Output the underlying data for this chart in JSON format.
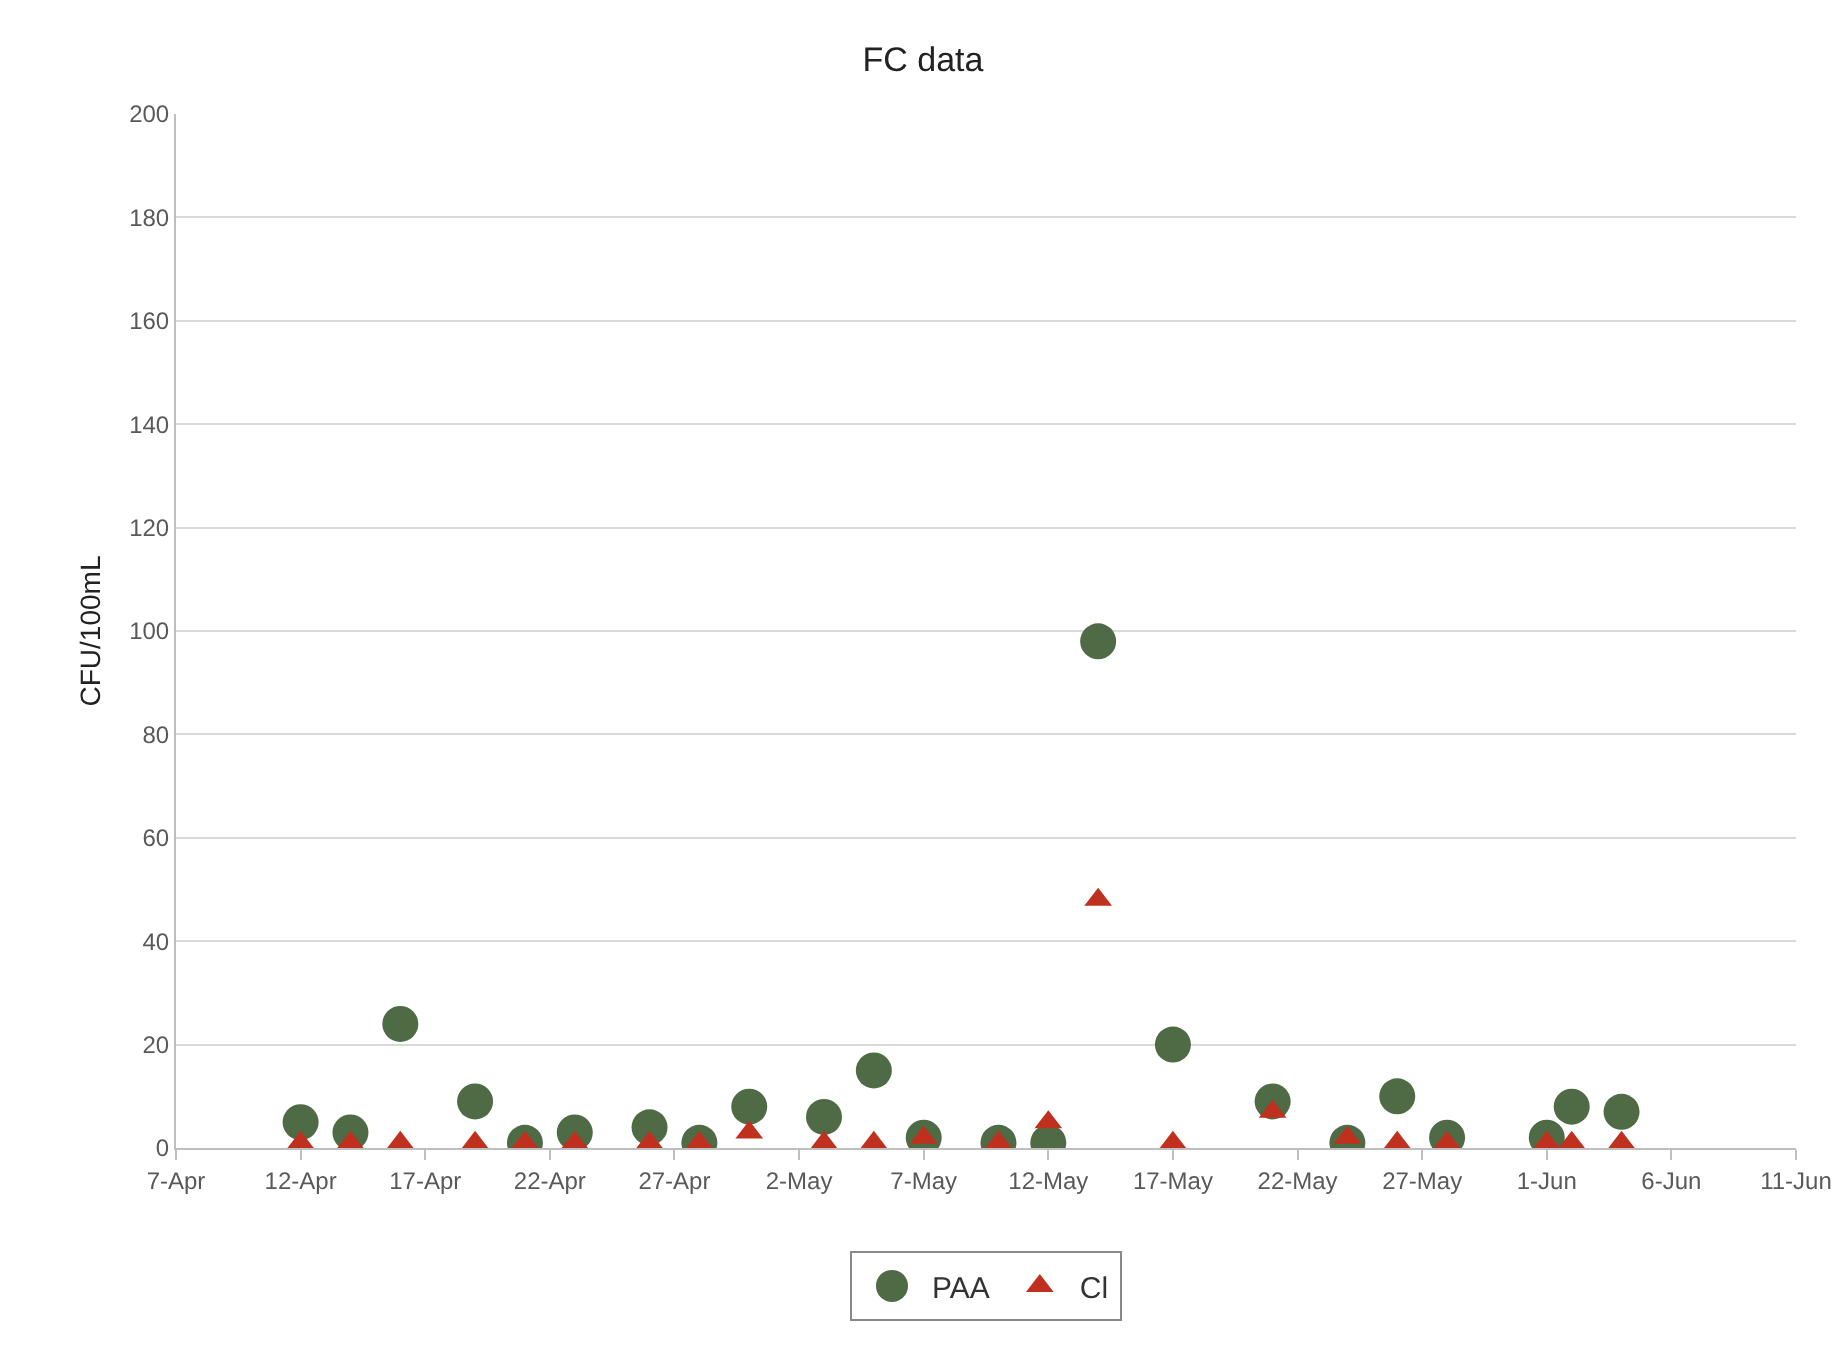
{
  "chart_data": {
    "type": "scatter",
    "title": "FC data",
    "ylabel": "CFU/100mL",
    "x": [
      "--04-12",
      "--04-14",
      "--04-16",
      "--04-19",
      "--04-21",
      "--04-23",
      "--04-26",
      "--04-28",
      "--04-30",
      "--05-03",
      "--05-05",
      "--05-07",
      "--05-10",
      "--05-12",
      "--05-14",
      "--05-17",
      "--05-21",
      "--05-24",
      "--05-26",
      "--05-28",
      "--06-01",
      "--06-02",
      "--06-04"
    ],
    "series": [
      {
        "name": "PAA",
        "color": "#4e6b45",
        "marker": "circle",
        "values": [
          5,
          3,
          24,
          9,
          1,
          3,
          4,
          1,
          8,
          6,
          15,
          2,
          1,
          1,
          98,
          20,
          9,
          1,
          10,
          2,
          2,
          8,
          7
        ]
      },
      {
        "name": "Cl",
        "color": "#c0301f",
        "marker": "triangle",
        "values": [
          1,
          1,
          1,
          1,
          1,
          1,
          1,
          1,
          3,
          1,
          1,
          2,
          1,
          5,
          48,
          1,
          7,
          2,
          1,
          1,
          1,
          1,
          1
        ]
      }
    ],
    "xlim": [
      "--04-07",
      "--06-11"
    ],
    "xticks": [
      {
        "value": "--04-07",
        "label": "7-Apr"
      },
      {
        "value": "--04-12",
        "label": "12-Apr"
      },
      {
        "value": "--04-17",
        "label": "17-Apr"
      },
      {
        "value": "--04-22",
        "label": "22-Apr"
      },
      {
        "value": "--04-27",
        "label": "27-Apr"
      },
      {
        "value": "--05-02",
        "label": "2-May"
      },
      {
        "value": "--05-07",
        "label": "7-May"
      },
      {
        "value": "--05-12",
        "label": "12-May"
      },
      {
        "value": "--05-17",
        "label": "17-May"
      },
      {
        "value": "--05-22",
        "label": "22-May"
      },
      {
        "value": "--05-27",
        "label": "27-May"
      },
      {
        "value": "--06-01",
        "label": "1-Jun"
      },
      {
        "value": "--06-06",
        "label": "6-Jun"
      },
      {
        "value": "--06-11",
        "label": "11-Jun"
      }
    ],
    "ylim": [
      0,
      200
    ],
    "yticks": [
      0,
      20,
      40,
      60,
      80,
      100,
      120,
      140,
      160,
      180,
      200
    ],
    "grid": "y",
    "legend": "bottom"
  }
}
